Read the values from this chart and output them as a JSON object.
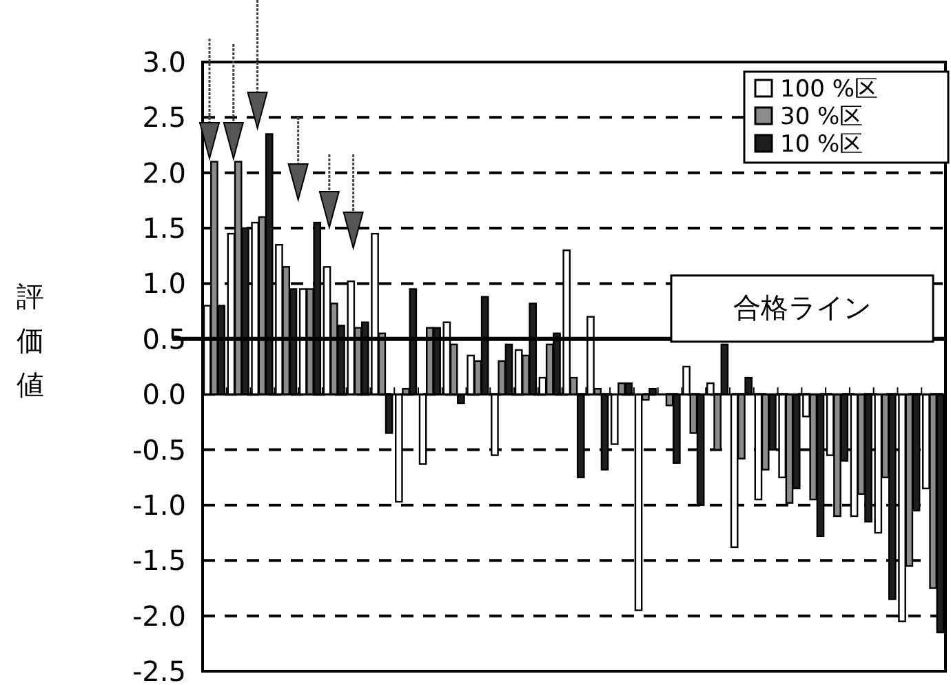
{
  "chart_data": {
    "type": "bar",
    "ylabel": "評価値",
    "categories": [
      null,
      null,
      null,
      null,
      null,
      null,
      null,
      null,
      null,
      null,
      null,
      null,
      null,
      null,
      null,
      null,
      null,
      null,
      null,
      null,
      null,
      null,
      null,
      null,
      null,
      null,
      null,
      null,
      null,
      null,
      null
    ],
    "series": [
      {
        "name": "100 %区",
        "color": "#ffffff",
        "values": [
          0.8,
          1.45,
          1.55,
          1.35,
          0.95,
          1.15,
          1.02,
          1.45,
          -0.97,
          -0.63,
          0.65,
          0.35,
          -0.55,
          0.4,
          0.15,
          1.3,
          0.7,
          -0.45,
          -1.95,
          0.0,
          0.25,
          0.1,
          -1.38,
          -0.95,
          -0.75,
          -0.2,
          -0.55,
          -1.1,
          -1.25,
          -2.05,
          -0.85
        ]
      },
      {
        "name": "30 %区",
        "color": "#8c8c8c",
        "values": [
          2.1,
          2.1,
          1.6,
          1.15,
          0.95,
          0.82,
          0.6,
          0.55,
          0.05,
          0.6,
          0.45,
          0.3,
          0.3,
          0.35,
          0.45,
          0.15,
          0.05,
          0.1,
          -0.05,
          -0.1,
          -0.35,
          -0.5,
          -0.58,
          -0.68,
          -0.98,
          -0.95,
          -1.1,
          -0.9,
          -0.75,
          -1.55,
          -1.75
        ]
      },
      {
        "name": "10 %区",
        "color": "#1e1e1e",
        "values": [
          0.8,
          1.5,
          2.35,
          0.95,
          1.55,
          0.62,
          0.65,
          -0.35,
          0.95,
          0.6,
          -0.08,
          0.88,
          0.45,
          0.82,
          0.55,
          -0.75,
          -0.68,
          0.1,
          0.05,
          -0.62,
          -1.0,
          0.45,
          0.15,
          -0.5,
          -0.85,
          -1.28,
          -0.6,
          -1.15,
          -1.85,
          -1.05,
          -2.15
        ]
      }
    ],
    "ylim": [
      -2.5,
      3.0
    ],
    "yticks": [
      {
        "value": 3,
        "label": "3.0"
      },
      {
        "value": 2.5,
        "label": "2.5"
      },
      {
        "value": 2,
        "label": "2.0"
      },
      {
        "value": 1.5,
        "label": "1.5"
      },
      {
        "value": 1,
        "label": "1.0"
      },
      {
        "value": 0.5,
        "label": "0.5"
      },
      {
        "value": 0,
        "label": "0.0"
      },
      {
        "value": -0.5,
        "label": "-0.5"
      },
      {
        "value": -1,
        "label": "-1.0"
      },
      {
        "value": -1.5,
        "label": "-1.5"
      },
      {
        "value": -2,
        "label": "-2.0"
      },
      {
        "value": -2.5,
        "label": "-2.5"
      }
    ],
    "grid": "y",
    "legend": "top right",
    "ref_lines": [
      {
        "axis": "y",
        "value": 0.5,
        "label": "合格ライン",
        "color": "#000000"
      }
    ]
  }
}
